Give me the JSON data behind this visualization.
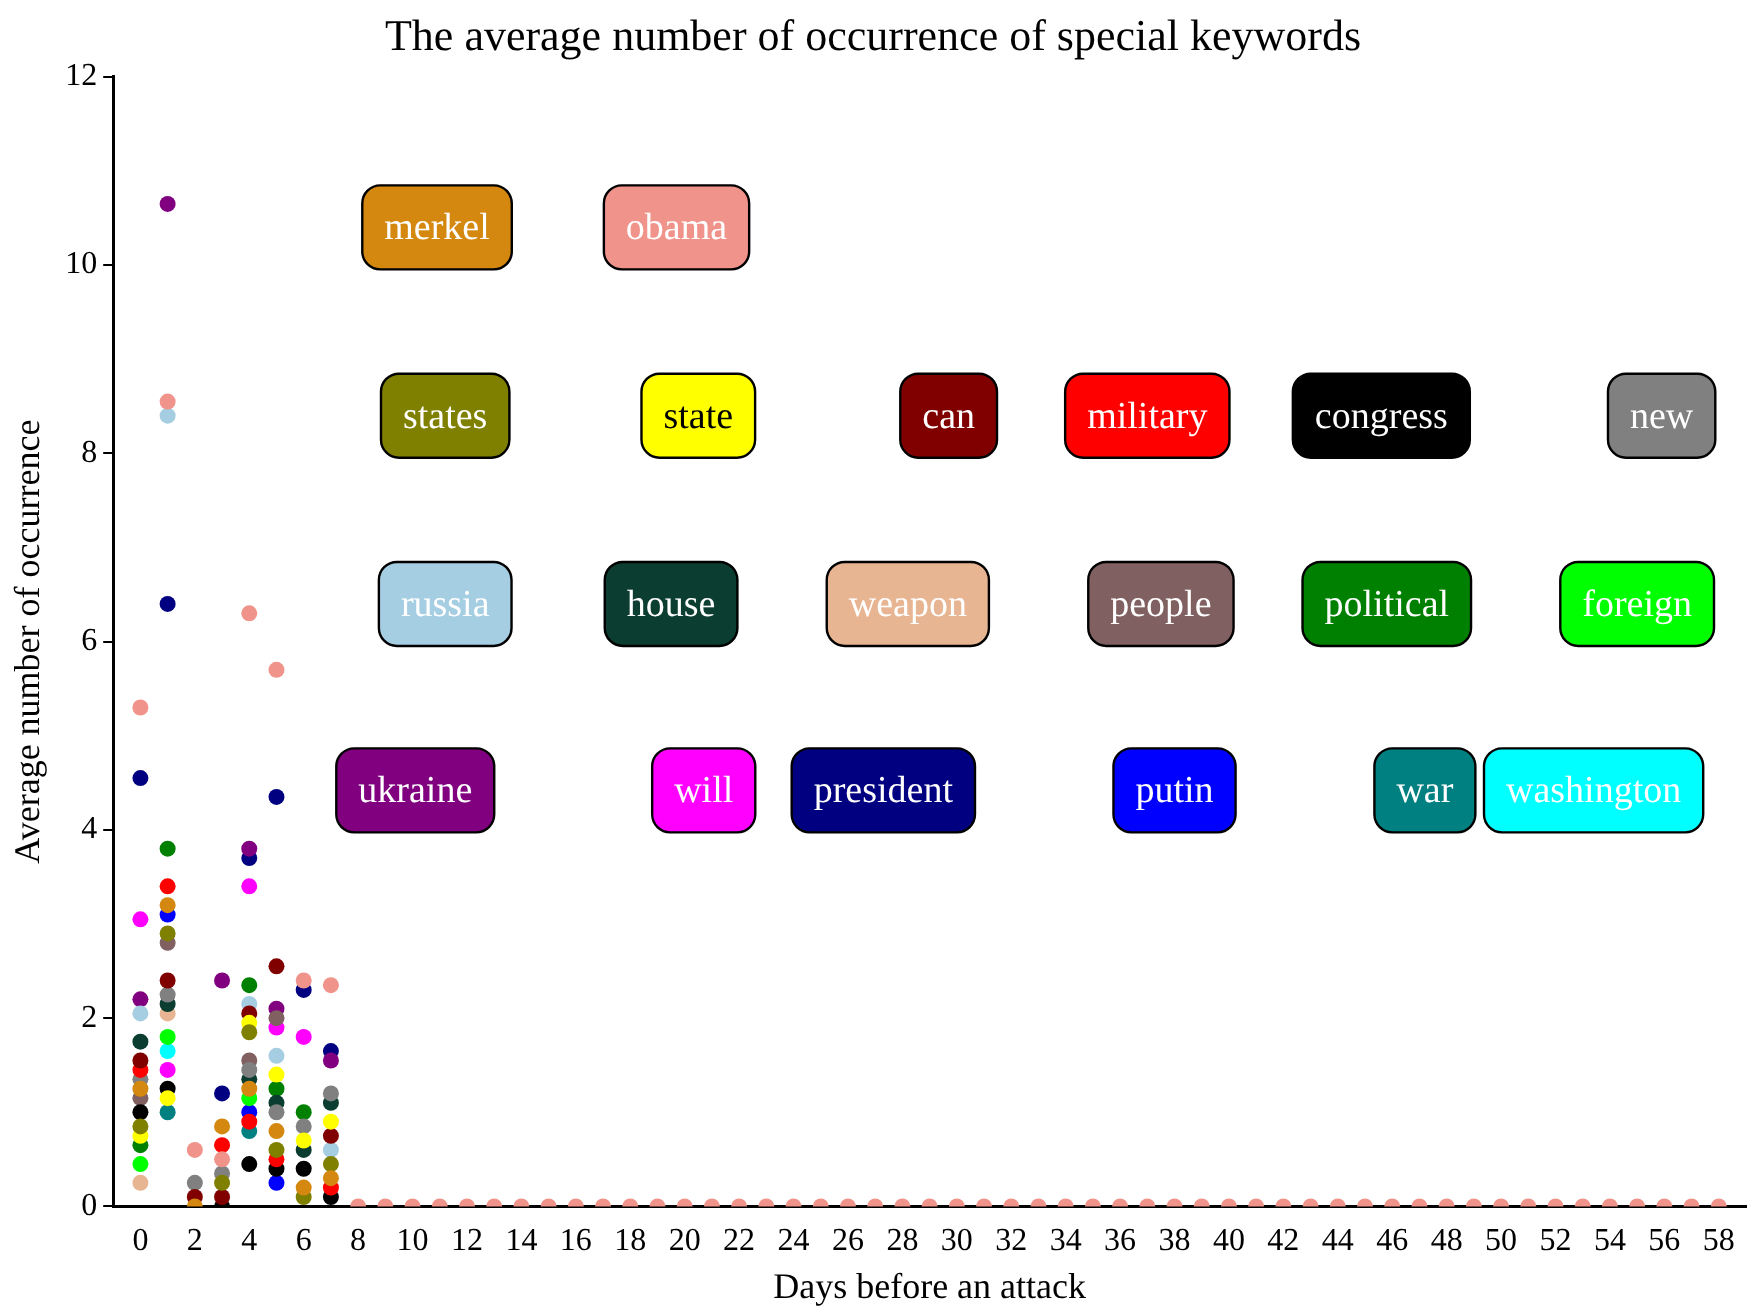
{
  "chart_data": {
    "type": "scatter",
    "title": "The average number of occurrence of special keywords",
    "xlabel": "Days before an attack",
    "ylabel": "Average number of occurrence",
    "x": [
      0,
      1,
      2,
      3,
      4,
      5,
      6,
      7,
      8,
      9,
      10,
      11,
      12,
      13,
      14,
      15,
      16,
      17,
      18,
      19,
      20,
      21,
      22,
      23,
      24,
      25,
      26,
      27,
      28,
      29,
      30,
      31,
      32,
      33,
      34,
      35,
      36,
      37,
      38,
      39,
      40,
      41,
      42,
      43,
      44,
      45,
      46,
      47,
      48,
      49,
      50,
      51,
      52,
      53,
      54,
      55,
      56,
      57,
      58
    ],
    "xlim": [
      -1,
      59
    ],
    "xticks": [
      0,
      2,
      4,
      6,
      8,
      10,
      12,
      14,
      16,
      18,
      20,
      22,
      24,
      26,
      28,
      30,
      32,
      34,
      36,
      38,
      40,
      42,
      44,
      46,
      48,
      50,
      52,
      54,
      56,
      58
    ],
    "ylim": [
      0,
      12
    ],
    "yticks": [
      0,
      2,
      4,
      6,
      8,
      10,
      12
    ],
    "marker": "circle",
    "legend": "top right",
    "series": [
      {
        "name": "merkel",
        "color": "#d4880f",
        "values": [
          1.25,
          3.2,
          0.0,
          0.85,
          1.25,
          0.8,
          0.2,
          0.3,
          null,
          null,
          null,
          null,
          null,
          null,
          null,
          null,
          null,
          null,
          null,
          null,
          null,
          null,
          null,
          null,
          null,
          null,
          null,
          null,
          null,
          null,
          null,
          null,
          null,
          null,
          null,
          null,
          null,
          null,
          null,
          null,
          null,
          null,
          null,
          null,
          null,
          null,
          null,
          null,
          null,
          null,
          null,
          null,
          null,
          null,
          null,
          null,
          null,
          null,
          null
        ]
      },
      {
        "name": "obama",
        "color": "#f0938a",
        "values": [
          5.3,
          8.55,
          0.6,
          0.5,
          6.3,
          5.7,
          2.4,
          2.35,
          0,
          0,
          0,
          0,
          0,
          0,
          0,
          0,
          0,
          0,
          0,
          0,
          0,
          0,
          0,
          0,
          0,
          0,
          0,
          0,
          0,
          0,
          0,
          0,
          0,
          0,
          0,
          0,
          0,
          0,
          0,
          0,
          0,
          0,
          0,
          0,
          0,
          0,
          0,
          0,
          0,
          0,
          0,
          0,
          0,
          0,
          0,
          0,
          0,
          0,
          0
        ]
      },
      {
        "name": "states",
        "color": "#808000",
        "values": [
          0.85,
          2.9,
          null,
          0.25,
          1.85,
          0.6,
          0.1,
          0.45,
          null,
          null,
          null,
          null,
          null,
          null,
          null,
          null,
          null,
          null,
          null,
          null,
          null,
          null,
          null,
          null,
          null,
          null,
          null,
          null,
          null,
          null,
          null,
          null,
          null,
          null,
          null,
          null,
          null,
          null,
          null,
          null,
          null,
          null,
          null,
          null,
          null,
          null,
          null,
          null,
          null,
          null,
          null,
          null,
          null,
          null,
          null,
          null,
          null,
          null,
          null
        ]
      },
      {
        "name": "state",
        "color": "#ffff00",
        "values": [
          0.75,
          1.15,
          null,
          null,
          1.95,
          1.4,
          0.7,
          0.9,
          null,
          null,
          null,
          null,
          null,
          null,
          null,
          null,
          null,
          null,
          null,
          null,
          null,
          null,
          null,
          null,
          null,
          null,
          null,
          null,
          null,
          null,
          null,
          null,
          null,
          null,
          null,
          null,
          null,
          null,
          null,
          null,
          null,
          null,
          null,
          null,
          null,
          null,
          null,
          null,
          null,
          null,
          null,
          null,
          null,
          null,
          null,
          null,
          null,
          null,
          null
        ]
      },
      {
        "name": "can",
        "color": "#800000",
        "values": [
          1.55,
          2.4,
          0.1,
          0.1,
          2.05,
          2.55,
          null,
          0.75,
          null,
          null,
          null,
          null,
          null,
          null,
          null,
          null,
          null,
          null,
          null,
          null,
          null,
          null,
          null,
          null,
          null,
          null,
          null,
          null,
          null,
          null,
          null,
          null,
          null,
          null,
          null,
          null,
          null,
          null,
          null,
          null,
          null,
          null,
          null,
          null,
          null,
          null,
          null,
          null,
          null,
          null,
          null,
          null,
          null,
          null,
          null,
          null,
          null,
          null,
          null
        ]
      },
      {
        "name": "military",
        "color": "#ff0000",
        "values": [
          1.45,
          3.4,
          null,
          0.65,
          0.9,
          0.5,
          null,
          0.2,
          null,
          null,
          null,
          null,
          null,
          null,
          null,
          null,
          null,
          null,
          null,
          null,
          null,
          null,
          null,
          null,
          null,
          null,
          null,
          null,
          null,
          null,
          null,
          null,
          null,
          null,
          null,
          null,
          null,
          null,
          null,
          null,
          null,
          null,
          null,
          null,
          null,
          null,
          null,
          null,
          null,
          null,
          null,
          null,
          null,
          null,
          null,
          null,
          null,
          null,
          null
        ]
      },
      {
        "name": "congress",
        "color": "#000000",
        "values": [
          1.0,
          1.25,
          null,
          0.0,
          0.45,
          0.4,
          0.4,
          0.1,
          null,
          null,
          null,
          null,
          null,
          null,
          null,
          null,
          null,
          null,
          null,
          null,
          null,
          null,
          null,
          null,
          null,
          null,
          null,
          null,
          null,
          null,
          null,
          null,
          null,
          null,
          null,
          null,
          null,
          null,
          null,
          null,
          null,
          null,
          null,
          null,
          null,
          null,
          null,
          null,
          null,
          null,
          null,
          null,
          null,
          null,
          null,
          null,
          null,
          null,
          null
        ]
      },
      {
        "name": "new",
        "color": "#808080",
        "values": [
          1.35,
          2.25,
          0.25,
          0.35,
          1.45,
          1.0,
          0.85,
          1.2,
          null,
          null,
          null,
          null,
          null,
          null,
          null,
          null,
          null,
          null,
          null,
          null,
          null,
          null,
          null,
          null,
          null,
          null,
          null,
          null,
          null,
          null,
          null,
          null,
          null,
          null,
          null,
          null,
          null,
          null,
          null,
          null,
          null,
          null,
          null,
          null,
          null,
          null,
          null,
          null,
          null,
          null,
          null,
          null,
          null,
          null,
          null,
          null,
          null,
          null,
          null
        ]
      },
      {
        "name": "russia",
        "color": "#a6cee3",
        "values": [
          2.05,
          8.4,
          null,
          null,
          2.15,
          1.6,
          null,
          0.6,
          null,
          null,
          null,
          null,
          null,
          null,
          null,
          null,
          null,
          null,
          null,
          null,
          null,
          null,
          null,
          null,
          null,
          null,
          null,
          null,
          null,
          null,
          null,
          null,
          null,
          null,
          null,
          null,
          null,
          null,
          null,
          null,
          null,
          null,
          null,
          null,
          null,
          null,
          null,
          null,
          null,
          null,
          null,
          null,
          null,
          null,
          null,
          null,
          null,
          null,
          null
        ]
      },
      {
        "name": "house",
        "color": "#0b3d30",
        "values": [
          1.75,
          2.15,
          null,
          null,
          1.35,
          1.1,
          0.6,
          1.1,
          null,
          null,
          null,
          null,
          null,
          null,
          null,
          null,
          null,
          null,
          null,
          null,
          null,
          null,
          null,
          null,
          null,
          null,
          null,
          null,
          null,
          null,
          null,
          null,
          null,
          null,
          null,
          null,
          null,
          null,
          null,
          null,
          null,
          null,
          null,
          null,
          null,
          null,
          null,
          null,
          null,
          null,
          null,
          null,
          null,
          null,
          null,
          null,
          null,
          null,
          null
        ]
      },
      {
        "name": "weapon",
        "color": "#e8b592",
        "values": [
          0.25,
          2.05,
          null,
          null,
          null,
          null,
          null,
          null,
          null,
          null,
          null,
          null,
          null,
          null,
          null,
          null,
          null,
          null,
          null,
          null,
          null,
          null,
          null,
          null,
          null,
          null,
          null,
          null,
          null,
          null,
          null,
          null,
          null,
          null,
          null,
          null,
          null,
          null,
          null,
          null,
          null,
          null,
          null,
          null,
          null,
          null,
          null,
          null,
          null,
          null,
          null,
          null,
          null,
          null,
          null,
          null,
          null,
          null,
          null
        ]
      },
      {
        "name": "people",
        "color": "#806060",
        "values": [
          1.15,
          2.8,
          null,
          null,
          1.55,
          2.0,
          null,
          null,
          null,
          null,
          null,
          null,
          null,
          null,
          null,
          null,
          null,
          null,
          null,
          null,
          null,
          null,
          null,
          null,
          null,
          null,
          null,
          null,
          null,
          null,
          null,
          null,
          null,
          null,
          null,
          null,
          null,
          null,
          null,
          null,
          null,
          null,
          null,
          null,
          null,
          null,
          null,
          null,
          null,
          null,
          null,
          null,
          null,
          null,
          null,
          null,
          null,
          null,
          null
        ]
      },
      {
        "name": "political",
        "color": "#008000",
        "values": [
          0.65,
          3.8,
          null,
          null,
          2.35,
          1.25,
          1.0,
          null,
          null,
          null,
          null,
          null,
          null,
          null,
          null,
          null,
          null,
          null,
          null,
          null,
          null,
          null,
          null,
          null,
          null,
          null,
          null,
          null,
          null,
          null,
          null,
          null,
          null,
          null,
          null,
          null,
          null,
          null,
          null,
          null,
          null,
          null,
          null,
          null,
          null,
          null,
          null,
          null,
          null,
          null,
          null,
          null,
          null,
          null,
          null,
          null,
          null,
          null,
          null
        ]
      },
      {
        "name": "foreign",
        "color": "#00ff00",
        "values": [
          0.45,
          1.8,
          null,
          null,
          1.15,
          null,
          null,
          null,
          null,
          null,
          null,
          null,
          null,
          null,
          null,
          null,
          null,
          null,
          null,
          null,
          null,
          null,
          null,
          null,
          null,
          null,
          null,
          null,
          null,
          null,
          null,
          null,
          null,
          null,
          null,
          null,
          null,
          null,
          null,
          null,
          null,
          null,
          null,
          null,
          null,
          null,
          null,
          null,
          null,
          null,
          null,
          null,
          null,
          null,
          null,
          null,
          null,
          null,
          null
        ]
      },
      {
        "name": "ukraine",
        "color": "#800080",
        "values": [
          2.2,
          10.65,
          null,
          2.4,
          3.8,
          2.1,
          null,
          1.55,
          null,
          null,
          null,
          null,
          null,
          null,
          null,
          null,
          null,
          null,
          null,
          null,
          null,
          null,
          null,
          null,
          null,
          null,
          null,
          null,
          null,
          null,
          null,
          null,
          null,
          null,
          null,
          null,
          null,
          null,
          null,
          null,
          null,
          null,
          null,
          null,
          null,
          null,
          null,
          null,
          null,
          null,
          null,
          null,
          null,
          null,
          null,
          null,
          null,
          null,
          null
        ]
      },
      {
        "name": "will",
        "color": "#ff00ff",
        "values": [
          3.05,
          1.45,
          null,
          null,
          3.4,
          1.9,
          1.8,
          null,
          null,
          null,
          null,
          null,
          null,
          null,
          null,
          null,
          null,
          null,
          null,
          null,
          null,
          null,
          null,
          null,
          null,
          null,
          null,
          null,
          null,
          null,
          null,
          null,
          null,
          null,
          null,
          null,
          null,
          null,
          null,
          null,
          null,
          null,
          null,
          null,
          null,
          null,
          null,
          null,
          null,
          null,
          null,
          null,
          null,
          null,
          null,
          null,
          null,
          null,
          null
        ]
      },
      {
        "name": "president",
        "color": "#000080",
        "values": [
          4.55,
          6.4,
          null,
          1.2,
          3.7,
          4.35,
          2.3,
          1.65,
          null,
          null,
          null,
          null,
          null,
          null,
          null,
          null,
          null,
          null,
          null,
          null,
          null,
          null,
          null,
          null,
          null,
          null,
          null,
          null,
          null,
          null,
          null,
          null,
          null,
          null,
          null,
          null,
          null,
          null,
          null,
          null,
          null,
          null,
          null,
          null,
          null,
          null,
          null,
          null,
          null,
          null,
          null,
          null,
          null,
          null,
          null,
          null,
          null,
          null,
          null
        ]
      },
      {
        "name": "putin",
        "color": "#0000ff",
        "values": [
          null,
          3.1,
          null,
          null,
          1.0,
          0.25,
          null,
          null,
          null,
          null,
          null,
          null,
          null,
          null,
          null,
          null,
          null,
          null,
          null,
          null,
          null,
          null,
          null,
          null,
          null,
          null,
          null,
          null,
          null,
          null,
          null,
          null,
          null,
          null,
          null,
          null,
          null,
          null,
          null,
          null,
          null,
          null,
          null,
          null,
          null,
          null,
          null,
          null,
          null,
          null,
          null,
          null,
          null,
          null,
          null,
          null,
          null,
          null,
          null
        ]
      },
      {
        "name": "war",
        "color": "#008080",
        "values": [
          null,
          1.0,
          null,
          null,
          0.8,
          null,
          null,
          null,
          null,
          null,
          null,
          null,
          null,
          null,
          null,
          null,
          null,
          null,
          null,
          null,
          null,
          null,
          null,
          null,
          null,
          null,
          null,
          null,
          null,
          null,
          null,
          null,
          null,
          null,
          null,
          null,
          null,
          null,
          null,
          null,
          null,
          null,
          null,
          null,
          null,
          null,
          null,
          null,
          null,
          null,
          null,
          null,
          null,
          null,
          null,
          null,
          null,
          null,
          null
        ]
      },
      {
        "name": "washington",
        "color": "#00ffff",
        "values": [
          null,
          1.65,
          null,
          null,
          null,
          null,
          null,
          null,
          null,
          null,
          null,
          null,
          null,
          null,
          null,
          null,
          null,
          null,
          null,
          null,
          null,
          null,
          null,
          null,
          null,
          null,
          null,
          null,
          null,
          null,
          null,
          null,
          null,
          null,
          null,
          null,
          null,
          null,
          null,
          null,
          null,
          null,
          null,
          null,
          null,
          null,
          null,
          null,
          null,
          null,
          null,
          null,
          null,
          null,
          null,
          null,
          null,
          null,
          null
        ]
      }
    ]
  }
}
